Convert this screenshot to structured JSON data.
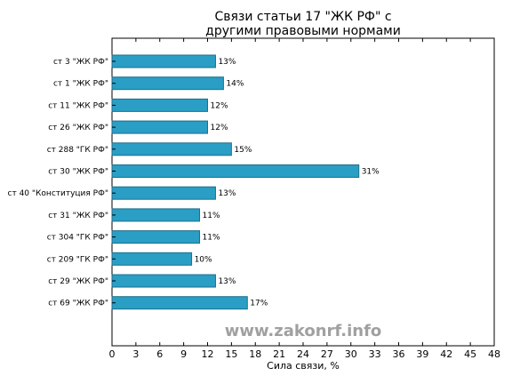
{
  "chart_data": {
    "type": "bar",
    "orientation": "horizontal",
    "title": [
      "Связи статьи 17 \"ЖК РФ\" с",
      "другими правовыми нормами"
    ],
    "xlabel": "Сила связи, %",
    "ylabel": "",
    "xlim": [
      0,
      48
    ],
    "xticks": [
      0,
      3,
      6,
      9,
      12,
      15,
      18,
      21,
      24,
      27,
      30,
      33,
      36,
      39,
      42,
      45,
      48
    ],
    "categories": [
      "ст 3 \"ЖК РФ\"",
      "ст 1 \"ЖК РФ\"",
      "ст 11 \"ЖК РФ\"",
      "ст 26 \"ЖК РФ\"",
      "ст 288 \"ГК РФ\"",
      "ст 30 \"ЖК РФ\"",
      "ст 40 \"Конституция РФ\"",
      "ст 31 \"ЖК РФ\"",
      "ст 304 \"ГК РФ\"",
      "ст 209 \"ГК РФ\"",
      "ст 29 \"ЖК РФ\"",
      "ст 69 \"ЖК РФ\""
    ],
    "values": [
      13,
      14,
      12,
      12,
      15,
      31,
      13,
      11,
      11,
      10,
      13,
      17
    ],
    "value_labels": [
      "13%",
      "14%",
      "12%",
      "12%",
      "15%",
      "31%",
      "13%",
      "11%",
      "11%",
      "10%",
      "13%",
      "17%"
    ],
    "bar_color": "#2a9ec4",
    "grid": false,
    "legend": "none"
  },
  "watermark": "www.zakonrf.info"
}
